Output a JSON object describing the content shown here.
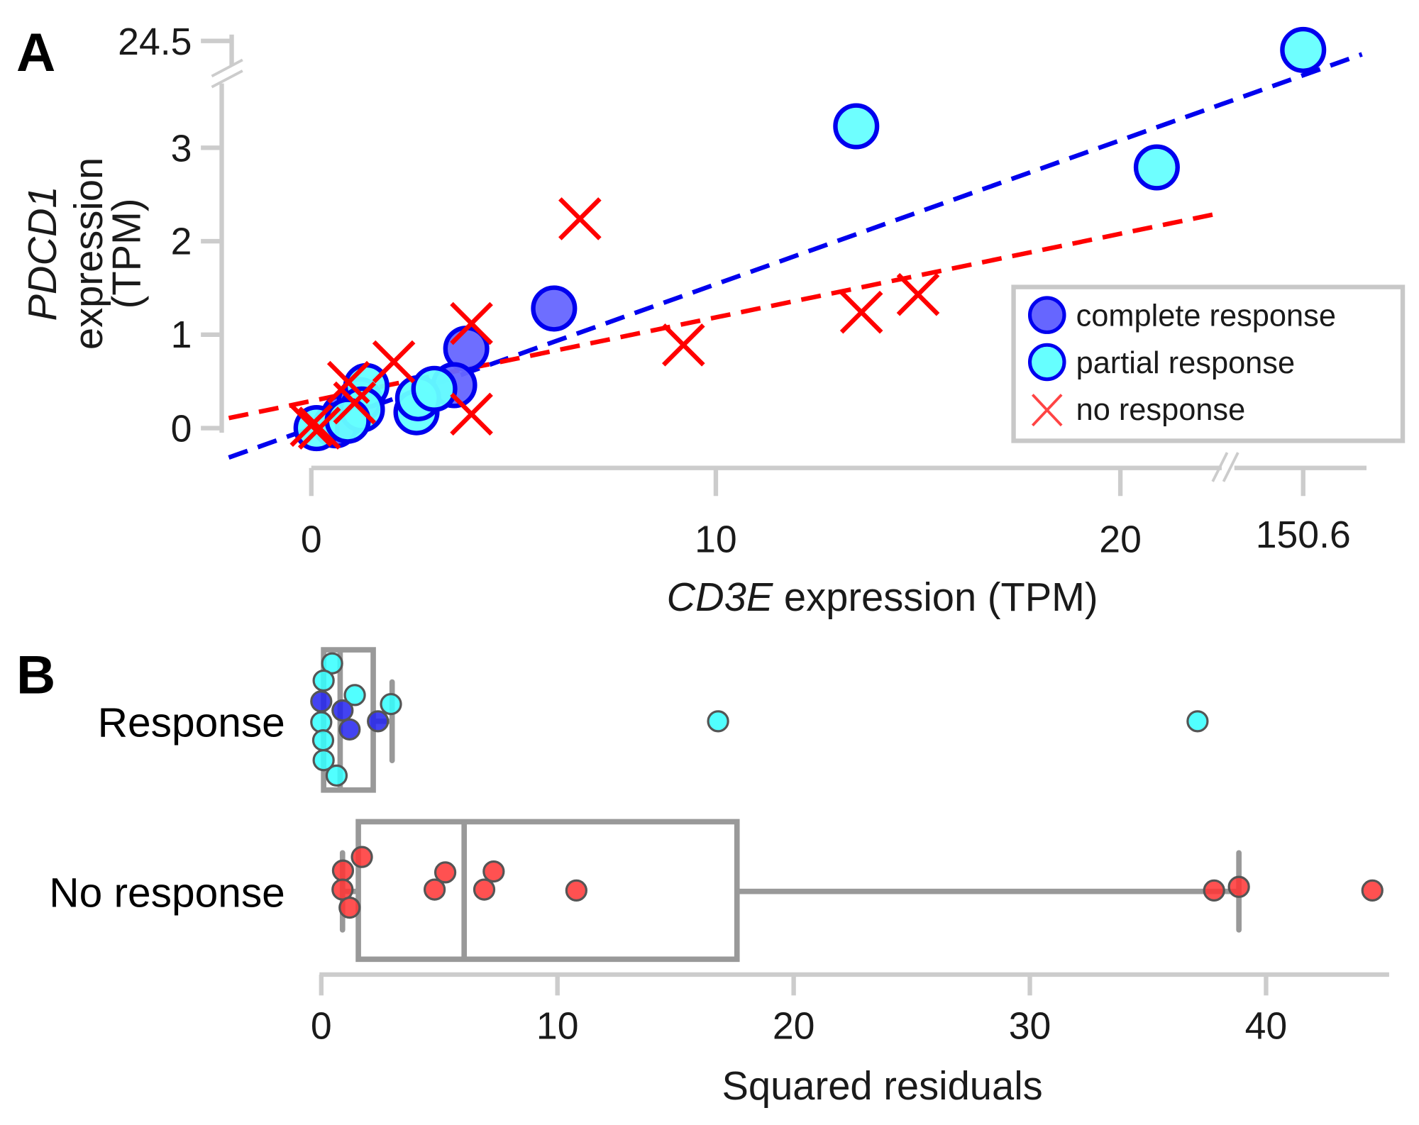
{
  "chart_data": [
    {
      "panel": "A",
      "type": "scatter",
      "xlabel_italic": "CD3E",
      "xlabel_rest": " expression (TPM)",
      "ylabel_italic": "PDCD1",
      "ylabel_line2": "expression",
      "ylabel_line3": "(TPM)",
      "x_ticks": [
        "0",
        "10",
        "20",
        "150.6"
      ],
      "y_ticks": [
        "0",
        "1",
        "2",
        "3",
        "24.5"
      ],
      "x_axis_break": "between 20 and 150.6",
      "y_axis_break": "between 3 and 24.5",
      "legend_position": "lower-right",
      "series": [
        {
          "name": "complete response",
          "marker": "circle",
          "fill": "#6666ff",
          "edge": "#0000ee",
          "points": [
            [
              6.0,
              1.28
            ],
            [
              3.83,
              0.85
            ],
            [
              3.53,
              0.46
            ],
            [
              0.8,
              0.13
            ],
            [
              0.6,
              0.03
            ],
            [
              1.2,
              0.3
            ]
          ]
        },
        {
          "name": "partial response",
          "marker": "circle",
          "fill": "#66ffff",
          "edge": "#0000ee",
          "points": [
            [
              150.6,
              24.5
            ],
            [
              13.47,
              3.23
            ],
            [
              20.9,
              2.79
            ],
            [
              1.36,
              0.45
            ],
            [
              1.25,
              0.2
            ],
            [
              2.6,
              0.17
            ],
            [
              2.64,
              0.32
            ],
            [
              3.04,
              0.42
            ],
            [
              0.13,
              0.0
            ],
            [
              0.9,
              0.08
            ]
          ]
        },
        {
          "name": "no response",
          "marker": "x",
          "color": "#ff0000",
          "points": [
            [
              6.64,
              2.24
            ],
            [
              9.2,
              0.89
            ],
            [
              13.6,
              1.24
            ],
            [
              15.0,
              1.43
            ],
            [
              3.96,
              1.12
            ],
            [
              3.96,
              0.15
            ],
            [
              2.04,
              0.71
            ],
            [
              0.92,
              0.49
            ],
            [
              1.07,
              0.27
            ],
            [
              0.0,
              0.03
            ],
            [
              0.2,
              0.0
            ]
          ]
        }
      ],
      "fit_lines": [
        {
          "series": "response",
          "color": "#0000ee",
          "style": "dashed",
          "slope": 0.154,
          "intercept": 0.0,
          "x_range": [
            -2.04,
            150.6
          ]
        },
        {
          "series": "no response",
          "color": "#ff0000",
          "style": "dashed",
          "slope": 0.0895,
          "intercept": 0.29,
          "x_range": [
            -2.04,
            22.5
          ]
        }
      ]
    },
    {
      "panel": "B",
      "type": "box",
      "xlabel": "Squared residuals",
      "x_ticks": [
        "0",
        "10",
        "20",
        "30",
        "40"
      ],
      "xlim": [
        0,
        45
      ],
      "categories": [
        "Response",
        "No response"
      ],
      "boxes": [
        {
          "category": "Response",
          "q1": 0.1,
          "median": 0.8,
          "q3": 2.2,
          "whisker_low": 0.0,
          "whisker_high": 3.0
        },
        {
          "category": "No response",
          "q1": 1.57,
          "median": 6.05,
          "q3": 17.6,
          "whisker_low": 0.9,
          "whisker_high": 38.85
        }
      ],
      "points": {
        "Response": [
          {
            "v": 0.46,
            "kind": "partial"
          },
          {
            "v": 0.1,
            "kind": "partial"
          },
          {
            "v": 1.42,
            "kind": "partial"
          },
          {
            "v": 2.95,
            "kind": "partial"
          },
          {
            "v": 0.0,
            "kind": "partial"
          },
          {
            "v": 0.08,
            "kind": "partial"
          },
          {
            "v": 0.1,
            "kind": "partial"
          },
          {
            "v": 0.65,
            "kind": "partial"
          },
          {
            "v": 16.8,
            "kind": "partial"
          },
          {
            "v": 37.1,
            "kind": "partial"
          },
          {
            "v": 0.0,
            "kind": "complete"
          },
          {
            "v": 0.9,
            "kind": "complete"
          },
          {
            "v": 1.2,
            "kind": "complete"
          },
          {
            "v": 2.4,
            "kind": "complete"
          }
        ],
        "No response": [
          1.72,
          0.92,
          0.9,
          1.2,
          5.25,
          4.8,
          7.3,
          6.9,
          10.8,
          37.8,
          38.85,
          44.5
        ]
      },
      "colors": {
        "partial": "#33ffff",
        "complete": "#2222ee",
        "no_response": "#ff3333"
      }
    }
  ],
  "labels": {
    "panel_a": "A",
    "panel_b": "B"
  }
}
